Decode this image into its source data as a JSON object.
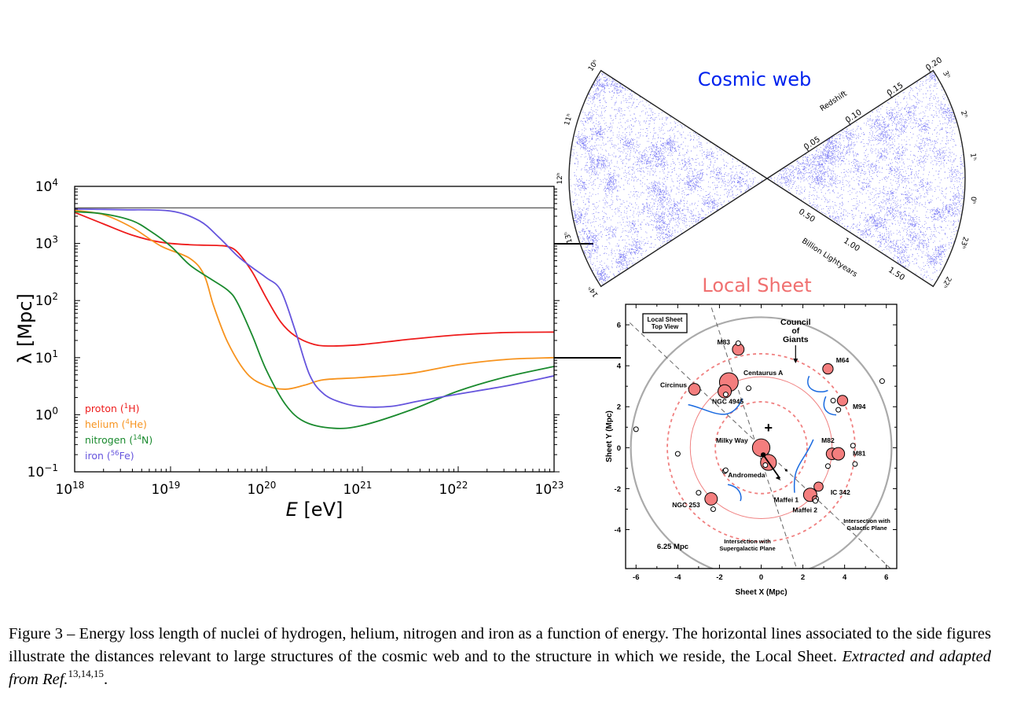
{
  "figure": {
    "caption": {
      "label": "Figure 3 –",
      "text": "Energy loss length of nuclei of hydrogen, helium, nitrogen and iron as a function of energy. The horizontal lines associated to the side figures illustrate the distances relevant to large structures of the cosmic web and to the structure in which we reside, the Local Sheet.",
      "source": "Extracted and adapted from Ref.",
      "refs": "13,14,15",
      "end": "."
    }
  },
  "chart_data": [
    {
      "type": "line",
      "title": "",
      "xlabel": "E [eV]",
      "ylabel": "λ [Mpc]",
      "xscale": "log",
      "yscale": "log",
      "xlim": [
        1e+18,
        1e+23
      ],
      "ylim": [
        0.1,
        10000
      ],
      "xticks": [
        {
          "exp": "18",
          "value": 1e+18
        },
        {
          "exp": "19",
          "value": 1e+19
        },
        {
          "exp": "20",
          "value": 1e+20
        },
        {
          "exp": "21",
          "value": 1e+21
        },
        {
          "exp": "22",
          "value": 1e+22
        },
        {
          "exp": "23",
          "value": 1e+23
        }
      ],
      "yticks": [
        {
          "exp": "−1",
          "value": 0.1
        },
        {
          "exp": "0",
          "value": 1
        },
        {
          "exp": "1",
          "value": 10
        },
        {
          "exp": "2",
          "value": 100
        },
        {
          "exp": "3",
          "value": 1000
        },
        {
          "exp": "4",
          "value": 10000
        }
      ],
      "legend_position": "bottom-left",
      "reference_lines": [
        {
          "name": "horizon",
          "y": 4200,
          "color": "#555555"
        },
        {
          "name": "cosmic-web-scale",
          "y": 1000,
          "color": "#000000"
        },
        {
          "name": "local-sheet-scale",
          "y": 10,
          "color": "#000000"
        }
      ],
      "series": [
        {
          "name": "proton",
          "label": "proton (",
          "iso_mass": "1",
          "iso_sym": "H",
          "color": "#ee1c1c",
          "x_log": [
            18.0,
            18.3,
            18.6,
            18.9,
            19.2,
            19.5,
            19.6,
            19.7,
            19.85,
            20.0,
            20.15,
            20.3,
            20.5,
            20.7,
            21.0,
            21.5,
            22.0,
            22.5,
            23.0
          ],
          "y": [
            3500,
            2200,
            1400,
            1050,
            950,
            920,
            880,
            700,
            320,
            110,
            42,
            24,
            17,
            16,
            17,
            21,
            25,
            27.5,
            28
          ]
        },
        {
          "name": "helium",
          "label": "helium (",
          "iso_mass": "4",
          "iso_sym": "He",
          "color": "#f7931e",
          "x_log": [
            18.0,
            18.3,
            18.6,
            18.9,
            19.2,
            19.35,
            19.45,
            19.6,
            19.8,
            20.0,
            20.2,
            20.4,
            20.6,
            21.0,
            21.5,
            22.0,
            22.5,
            23.0
          ],
          "y": [
            3800,
            3200,
            1900,
            900,
            550,
            280,
            80,
            18,
            5.2,
            3.2,
            2.8,
            3.3,
            4.1,
            4.5,
            5.3,
            7.5,
            9.3,
            10
          ]
        },
        {
          "name": "nitrogen",
          "label": "nitrogen (",
          "iso_mass": "14",
          "iso_sym": "N",
          "color": "#1a8a2e",
          "x_log": [
            18.0,
            18.3,
            18.6,
            18.8,
            19.0,
            19.2,
            19.4,
            19.6,
            19.7,
            19.85,
            20.0,
            20.2,
            20.4,
            20.7,
            21.0,
            21.5,
            22.0,
            22.5,
            23.0
          ],
          "y": [
            3600,
            3300,
            2500,
            1600,
            900,
            420,
            250,
            150,
            90,
            25,
            6,
            1.5,
            0.75,
            0.58,
            0.65,
            1.2,
            2.6,
            4.6,
            7
          ]
        },
        {
          "name": "iron",
          "label": "iron (",
          "iso_mass": "56",
          "iso_sym": "Fe",
          "color": "#6655dd",
          "x_log": [
            18.0,
            18.5,
            19.0,
            19.3,
            19.5,
            19.7,
            19.85,
            20.0,
            20.15,
            20.3,
            20.45,
            20.6,
            20.8,
            21.0,
            21.3,
            21.6,
            22.0,
            22.5,
            23.0
          ],
          "y": [
            4000,
            3900,
            3700,
            2500,
            1300,
            600,
            380,
            250,
            150,
            30,
            5,
            2.3,
            1.6,
            1.38,
            1.4,
            1.75,
            2.3,
            3.2,
            4.8
          ]
        }
      ]
    },
    {
      "type": "scatter",
      "title": "Cosmic web",
      "title_color": "#0022ee",
      "point_color": "#1a1aee",
      "labels": {
        "redshift": "Redshift",
        "distance": "Billion Lightyears"
      },
      "redshift_ticks": [
        "0.05",
        "0.10",
        "0.15",
        "0.20"
      ],
      "distance_ticks": [
        "0.50",
        "1.00",
        "1.50"
      ],
      "ra_ticks_left": [
        "10ʰ",
        "11ʰ",
        "12ʰ",
        "13ʰ",
        "14ʰ"
      ],
      "ra_ticks_right": [
        "3ʰ",
        "2ʰ",
        "1ʰ",
        "0ʰ",
        "23ʰ",
        "22ʰ"
      ]
    },
    {
      "type": "scatter",
      "title": "Local Sheet",
      "title_color": "#f07070",
      "xlabel": "Sheet X (Mpc)",
      "ylabel": "Sheet Y (Mpc)",
      "xlim": [
        -6.5,
        6.5
      ],
      "ylim": [
        -5.9,
        7
      ],
      "xticks": [
        "-6",
        "-4",
        "-2",
        "0",
        "2",
        "4",
        "6"
      ],
      "yticks": [
        "-4",
        "-2",
        "0",
        "2",
        "4",
        "6"
      ],
      "xtick_values": [
        -6,
        -4,
        -2,
        0,
        2,
        4,
        6
      ],
      "ytick_values": [
        -4,
        -2,
        0,
        2,
        4,
        6
      ],
      "box_label": [
        "Local Sheet",
        "Top View"
      ],
      "council_label": [
        "Council",
        "of",
        "Giants"
      ],
      "radius_label": "6.25 Mpc",
      "outer_radius": 6.25,
      "circles_solid": [
        3.4
      ],
      "circles_dashed": [
        2.2,
        4.5
      ],
      "plane_labels": {
        "galactic": [
          "Intersection with",
          "Galactic Plane"
        ],
        "supergalactic": [
          "Intersection with",
          "Supergalactic Plane"
        ]
      },
      "galaxies": [
        {
          "name": "Milky Way",
          "x": 0.0,
          "y": 0.0,
          "r": 0.42,
          "lx": -1.4,
          "ly": 0.25
        },
        {
          "name": "Andromeda",
          "x": 0.35,
          "y": -0.72,
          "r": 0.38,
          "lx": -0.7,
          "ly": -1.45
        },
        {
          "name": "Centaurus A",
          "x": -1.55,
          "y": 3.2,
          "r": 0.45,
          "lx": 0.1,
          "ly": 3.55
        },
        {
          "name": "NGC 4945",
          "x": -1.75,
          "y": 2.75,
          "r": 0.32,
          "lx": -1.6,
          "ly": 2.15
        },
        {
          "name": "Circinus",
          "x": -3.2,
          "y": 2.85,
          "r": 0.28,
          "lx": -4.2,
          "ly": 2.95
        },
        {
          "name": "M83",
          "x": -1.1,
          "y": 4.8,
          "r": 0.28,
          "lx": -1.8,
          "ly": 5.05
        },
        {
          "name": "M64",
          "x": 3.2,
          "y": 3.85,
          "r": 0.25,
          "lx": 3.9,
          "ly": 4.15
        },
        {
          "name": "M94",
          "x": 3.9,
          "y": 2.3,
          "r": 0.25,
          "lx": 4.7,
          "ly": 1.9
        },
        {
          "name": "M82",
          "x": 3.4,
          "y": -0.3,
          "r": 0.28,
          "lx": 3.2,
          "ly": 0.25
        },
        {
          "name": "M81",
          "x": 3.7,
          "y": -0.3,
          "r": 0.3,
          "lx": 4.7,
          "ly": -0.4
        },
        {
          "name": "IC 342",
          "x": 2.75,
          "y": -1.9,
          "r": 0.22,
          "lx": 3.8,
          "ly": -2.3
        },
        {
          "name": "Maffei 1",
          "x": 2.35,
          "y": -2.3,
          "r": 0.32,
          "lx": 1.2,
          "ly": -2.65
        },
        {
          "name": "Maffei 2",
          "x": 2.6,
          "y": -2.5,
          "r": 0.0,
          "lx": 2.1,
          "ly": -3.15
        },
        {
          "name": "NGC 253",
          "x": -2.4,
          "y": -2.5,
          "r": 0.3,
          "lx": -3.6,
          "ly": -2.9
        }
      ]
    }
  ]
}
